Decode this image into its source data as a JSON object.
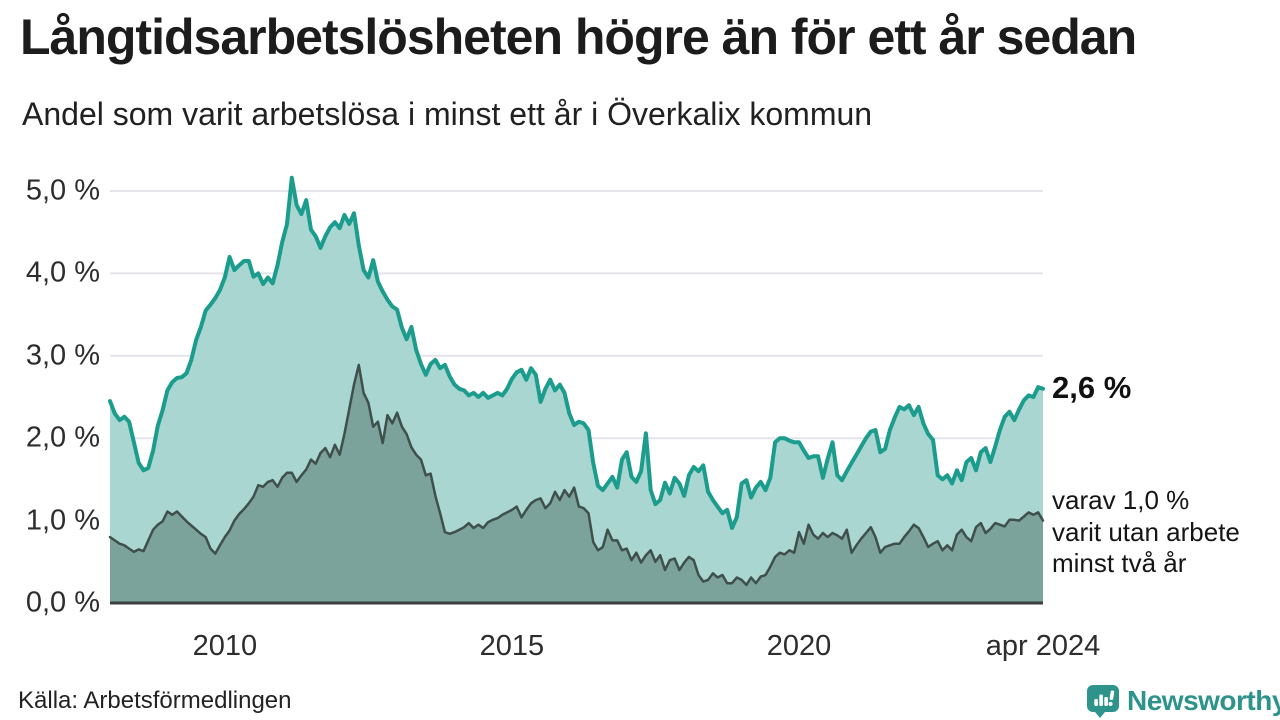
{
  "header": {
    "title": "Långtidsarbetslösheten högre än för ett år sedan",
    "subtitle": "Andel som varit arbetslösa i minst ett år i Överkalix kommun"
  },
  "chart_data": {
    "type": "area",
    "unit": "%",
    "title": "Långtidsarbetslösheten högre än för ett år sedan",
    "subtitle": "Andel som varit arbetslösa i minst ett år i Överkalix kommun",
    "x_start_month": "jan 2008",
    "x_end_month": "apr 2024",
    "ylim": [
      0,
      5.2
    ],
    "grid": true,
    "y_ticks": [
      {
        "label": "0,0 %",
        "value": 0
      },
      {
        "label": "1,0 %",
        "value": 1
      },
      {
        "label": "2,0 %",
        "value": 2
      },
      {
        "label": "3,0 %",
        "value": 3
      },
      {
        "label": "4,0 %",
        "value": 4
      },
      {
        "label": "5,0 %",
        "value": 5
      }
    ],
    "x_ticks": [
      {
        "label": "2010",
        "month": 24
      },
      {
        "label": "2015",
        "month": 84
      },
      {
        "label": "2020",
        "month": 144
      },
      {
        "label": "apr 2024",
        "month": 195
      }
    ],
    "series": [
      {
        "name": "arbetslösa minst ett år",
        "line_color": "#1b9c8d",
        "fill_color": "#a9d6d1",
        "line_width": 4,
        "last_value": 2.6,
        "values": [
          2.45,
          2.3,
          2.22,
          2.26,
          2.2,
          1.95,
          1.7,
          1.61,
          1.64,
          1.85,
          2.15,
          2.34,
          2.58,
          2.68,
          2.73,
          2.74,
          2.79,
          2.95,
          3.19,
          3.35,
          3.55,
          3.62,
          3.7,
          3.8,
          3.95,
          4.2,
          4.04,
          4.1,
          4.15,
          4.15,
          3.96,
          4.0,
          3.87,
          3.95,
          3.88,
          4.1,
          4.38,
          4.6,
          5.16,
          4.83,
          4.72,
          4.89,
          4.53,
          4.45,
          4.31,
          4.45,
          4.56,
          4.62,
          4.55,
          4.71,
          4.6,
          4.73,
          4.34,
          4.04,
          3.95,
          4.16,
          3.9,
          3.78,
          3.68,
          3.6,
          3.56,
          3.34,
          3.2,
          3.35,
          3.07,
          2.9,
          2.77,
          2.9,
          2.95,
          2.85,
          2.89,
          2.75,
          2.65,
          2.6,
          2.58,
          2.52,
          2.55,
          2.5,
          2.55,
          2.49,
          2.52,
          2.55,
          2.52,
          2.6,
          2.72,
          2.8,
          2.83,
          2.71,
          2.85,
          2.77,
          2.44,
          2.6,
          2.71,
          2.58,
          2.65,
          2.55,
          2.3,
          2.16,
          2.2,
          2.18,
          2.1,
          1.7,
          1.42,
          1.37,
          1.45,
          1.53,
          1.4,
          1.74,
          1.83,
          1.53,
          1.47,
          1.6,
          2.06,
          1.37,
          1.2,
          1.25,
          1.46,
          1.33,
          1.52,
          1.45,
          1.3,
          1.55,
          1.65,
          1.6,
          1.67,
          1.35,
          1.25,
          1.17,
          1.09,
          1.13,
          0.91,
          1.04,
          1.45,
          1.49,
          1.28,
          1.4,
          1.47,
          1.37,
          1.52,
          1.95,
          2.0,
          2.0,
          1.97,
          1.95,
          1.95,
          1.85,
          1.76,
          1.78,
          1.78,
          1.52,
          1.75,
          1.95,
          1.55,
          1.49,
          1.6,
          1.7,
          1.8,
          1.9,
          2.0,
          2.08,
          2.1,
          1.83,
          1.87,
          2.1,
          2.25,
          2.38,
          2.35,
          2.4,
          2.28,
          2.38,
          2.18,
          2.05,
          1.98,
          1.55,
          1.5,
          1.55,
          1.45,
          1.61,
          1.49,
          1.71,
          1.76,
          1.61,
          1.83,
          1.88,
          1.71,
          1.9,
          2.1,
          2.26,
          2.32,
          2.22,
          2.35,
          2.46,
          2.52,
          2.5,
          2.62,
          2.6
        ]
      },
      {
        "name": "varav utan arbete minst två år",
        "line_color": "#3f4f4b",
        "fill_color": "#7ca39b",
        "line_width": 2.5,
        "last_value": 1.0,
        "values": [
          0.8,
          0.76,
          0.72,
          0.7,
          0.66,
          0.62,
          0.65,
          0.63,
          0.76,
          0.89,
          0.95,
          0.99,
          1.11,
          1.07,
          1.11,
          1.05,
          0.99,
          0.94,
          0.89,
          0.84,
          0.8,
          0.66,
          0.6,
          0.7,
          0.8,
          0.88,
          1.0,
          1.08,
          1.14,
          1.21,
          1.29,
          1.43,
          1.41,
          1.47,
          1.49,
          1.41,
          1.52,
          1.58,
          1.58,
          1.47,
          1.55,
          1.62,
          1.74,
          1.69,
          1.82,
          1.88,
          1.77,
          1.92,
          1.8,
          2.05,
          2.35,
          2.65,
          2.89,
          2.55,
          2.43,
          2.14,
          2.2,
          1.94,
          2.28,
          2.18,
          2.31,
          2.14,
          2.05,
          1.89,
          1.8,
          1.74,
          1.55,
          1.57,
          1.3,
          1.09,
          0.86,
          0.84,
          0.86,
          0.89,
          0.92,
          0.97,
          0.91,
          0.95,
          0.91,
          0.98,
          1.01,
          1.03,
          1.07,
          1.1,
          1.13,
          1.17,
          1.04,
          1.13,
          1.21,
          1.25,
          1.27,
          1.15,
          1.21,
          1.35,
          1.25,
          1.37,
          1.29,
          1.4,
          1.17,
          1.15,
          1.09,
          0.74,
          0.64,
          0.68,
          0.89,
          0.76,
          0.76,
          0.64,
          0.66,
          0.52,
          0.61,
          0.49,
          0.58,
          0.64,
          0.5,
          0.58,
          0.4,
          0.52,
          0.54,
          0.4,
          0.49,
          0.56,
          0.52,
          0.34,
          0.26,
          0.28,
          0.36,
          0.31,
          0.34,
          0.24,
          0.24,
          0.31,
          0.28,
          0.22,
          0.31,
          0.24,
          0.32,
          0.34,
          0.44,
          0.56,
          0.61,
          0.59,
          0.64,
          0.61,
          0.86,
          0.72,
          0.95,
          0.83,
          0.78,
          0.85,
          0.8,
          0.85,
          0.82,
          0.78,
          0.89,
          0.61,
          0.7,
          0.78,
          0.85,
          0.92,
          0.8,
          0.61,
          0.68,
          0.7,
          0.72,
          0.72,
          0.8,
          0.87,
          0.95,
          0.91,
          0.8,
          0.68,
          0.72,
          0.75,
          0.64,
          0.7,
          0.64,
          0.83,
          0.89,
          0.8,
          0.75,
          0.92,
          0.97,
          0.85,
          0.9,
          0.97,
          0.95,
          0.93,
          1.01,
          1.01,
          1.0,
          1.05,
          1.1,
          1.07,
          1.1,
          1.0
        ]
      }
    ],
    "annotations": {
      "last_value_label": "2,6 %",
      "secondary_label": "varav 1,0 %\nvarit utan arbete\nminst två år"
    },
    "colors": {
      "gridline": "#e4e4ea",
      "axis_line": "#3d3d3d"
    }
  },
  "footer": {
    "source": "Källa: Arbetsförmedlingen",
    "brand": "Newsworthy",
    "brand_color": "#2e948b"
  }
}
